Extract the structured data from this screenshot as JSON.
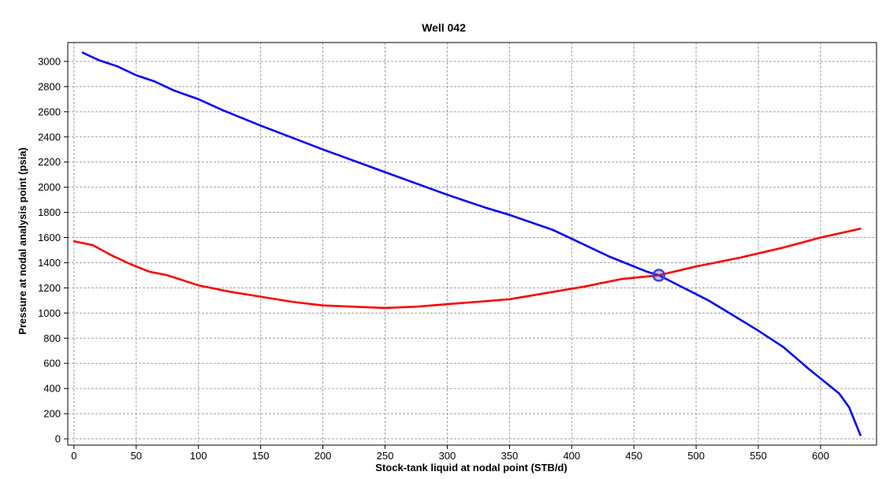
{
  "chart_data": {
    "type": "line",
    "title": "Well 042",
    "xlabel": "Stock-tank liquid at nodal point (STB/d)",
    "ylabel": "Pressure at nodal analysis point (psia)",
    "xlim": [
      -5,
      645
    ],
    "ylim": [
      -50,
      3150
    ],
    "xticks": [
      0,
      50,
      100,
      150,
      200,
      250,
      300,
      350,
      400,
      450,
      500,
      550,
      600
    ],
    "yticks": [
      0,
      200,
      400,
      600,
      800,
      1000,
      1200,
      1400,
      1600,
      1800,
      2000,
      2200,
      2400,
      2600,
      2800,
      3000
    ],
    "grid": true,
    "series": [
      {
        "color": "#0000ff",
        "points": [
          [
            7,
            3070
          ],
          [
            20,
            3010
          ],
          [
            35,
            2960
          ],
          [
            50,
            2890
          ],
          [
            65,
            2840
          ],
          [
            80,
            2770
          ],
          [
            100,
            2700
          ],
          [
            120,
            2610
          ],
          [
            150,
            2490
          ],
          [
            200,
            2300
          ],
          [
            250,
            2120
          ],
          [
            300,
            1940
          ],
          [
            330,
            1840
          ],
          [
            350,
            1780
          ],
          [
            385,
            1660
          ],
          [
            400,
            1590
          ],
          [
            430,
            1450
          ],
          [
            460,
            1330
          ],
          [
            470,
            1300
          ],
          [
            490,
            1200
          ],
          [
            510,
            1100
          ],
          [
            530,
            980
          ],
          [
            550,
            860
          ],
          [
            570,
            730
          ],
          [
            590,
            560
          ],
          [
            605,
            440
          ],
          [
            615,
            360
          ],
          [
            623,
            250
          ],
          [
            632,
            30
          ]
        ]
      },
      {
        "color": "#ff0000",
        "points": [
          [
            0,
            1570
          ],
          [
            15,
            1540
          ],
          [
            30,
            1460
          ],
          [
            45,
            1390
          ],
          [
            60,
            1330
          ],
          [
            75,
            1300
          ],
          [
            100,
            1220
          ],
          [
            125,
            1170
          ],
          [
            150,
            1130
          ],
          [
            175,
            1090
          ],
          [
            200,
            1060
          ],
          [
            225,
            1050
          ],
          [
            250,
            1040
          ],
          [
            275,
            1050
          ],
          [
            300,
            1070
          ],
          [
            325,
            1090
          ],
          [
            350,
            1110
          ],
          [
            380,
            1160
          ],
          [
            410,
            1210
          ],
          [
            440,
            1270
          ],
          [
            470,
            1300
          ],
          [
            500,
            1370
          ],
          [
            535,
            1440
          ],
          [
            570,
            1520
          ],
          [
            600,
            1600
          ],
          [
            632,
            1670
          ]
        ]
      }
    ],
    "operating_point": {
      "x": 470,
      "y": 1300,
      "color": "#3b44e8"
    }
  }
}
